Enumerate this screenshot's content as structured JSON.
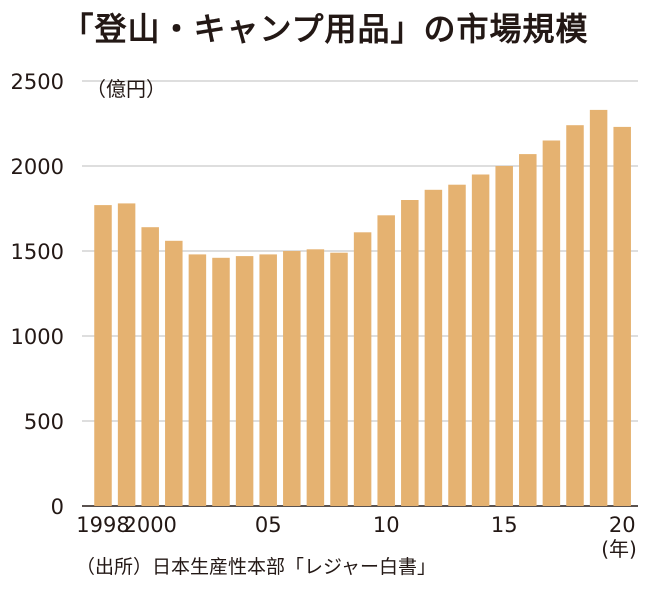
{
  "chart_data": {
    "type": "bar",
    "title": "「登山・キャンプ用品」の市場規模",
    "unit_label": "（億円）",
    "year_unit_label": "(年)",
    "source": "（出所）日本生産性本部「レジャー白書」",
    "years": [
      1998,
      1999,
      2000,
      2001,
      2002,
      2003,
      2004,
      2005,
      2006,
      2007,
      2008,
      2009,
      2010,
      2011,
      2012,
      2013,
      2014,
      2015,
      2016,
      2017,
      2018,
      2019,
      2020
    ],
    "values": [
      1770,
      1780,
      1640,
      1560,
      1480,
      1460,
      1470,
      1480,
      1500,
      1510,
      1490,
      1610,
      1710,
      1800,
      1860,
      1890,
      1950,
      2000,
      2070,
      2150,
      2240,
      2330,
      2230
    ],
    "x_tick_labels": [
      {
        "year": 1998,
        "label": "1998"
      },
      {
        "year": 2000,
        "label": "2000"
      },
      {
        "year": 2005,
        "label": "05"
      },
      {
        "year": 2010,
        "label": "10"
      },
      {
        "year": 2015,
        "label": "15"
      },
      {
        "year": 2020,
        "label": "20"
      }
    ],
    "y_ticks": [
      0,
      500,
      1000,
      1500,
      2000,
      2500
    ],
    "ylim": [
      0,
      2500
    ],
    "grid": true,
    "bar_color": "#e5b271",
    "grid_color": "#bdbdbd"
  }
}
